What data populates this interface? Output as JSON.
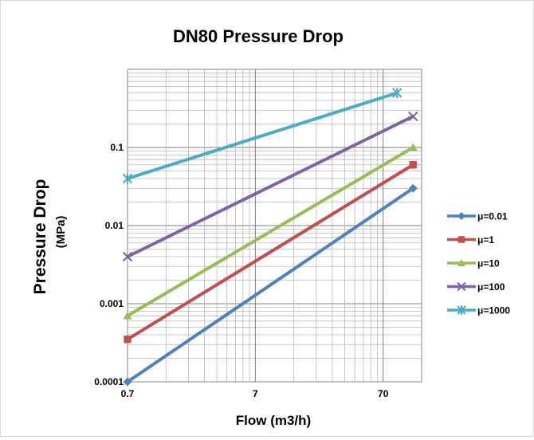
{
  "chart_data": {
    "type": "line",
    "title": "DN80 Pressure Drop",
    "xlabel": "Flow (m3/h)",
    "ylabel": "Pressure Drop",
    "ylabel_unit": "(MPa)",
    "x_scale": "log",
    "y_scale": "log",
    "xlim": [
      0.7,
      140
    ],
    "ylim": [
      0.0001,
      1
    ],
    "x_ticks": [
      0.7,
      7,
      70
    ],
    "x_tick_labels": [
      "0.7",
      "7",
      "70"
    ],
    "y_ticks": [
      0.0001,
      0.001,
      0.01,
      0.1
    ],
    "y_tick_labels": [
      "0.0001",
      "0.001",
      "0.01",
      "0.1"
    ],
    "grid": true,
    "legend_position": "right",
    "series": [
      {
        "name": "μ=0.01",
        "color": "#4f81bd",
        "marker": "diamond",
        "x": [
          0.7,
          120
        ],
        "y": [
          0.0001,
          0.03
        ]
      },
      {
        "name": "μ=1",
        "color": "#c0504d",
        "marker": "square",
        "x": [
          0.7,
          120
        ],
        "y": [
          0.00035,
          0.06
        ]
      },
      {
        "name": "μ=10",
        "color": "#9bbb59",
        "marker": "triangle",
        "x": [
          0.7,
          120
        ],
        "y": [
          0.0007,
          0.1
        ]
      },
      {
        "name": "μ=100",
        "color": "#8064a2",
        "marker": "x",
        "x": [
          0.7,
          120
        ],
        "y": [
          0.004,
          0.25
        ]
      },
      {
        "name": "μ=1000",
        "color": "#4bacc6",
        "marker": "star",
        "x": [
          0.7,
          90
        ],
        "y": [
          0.04,
          0.5
        ]
      }
    ]
  }
}
